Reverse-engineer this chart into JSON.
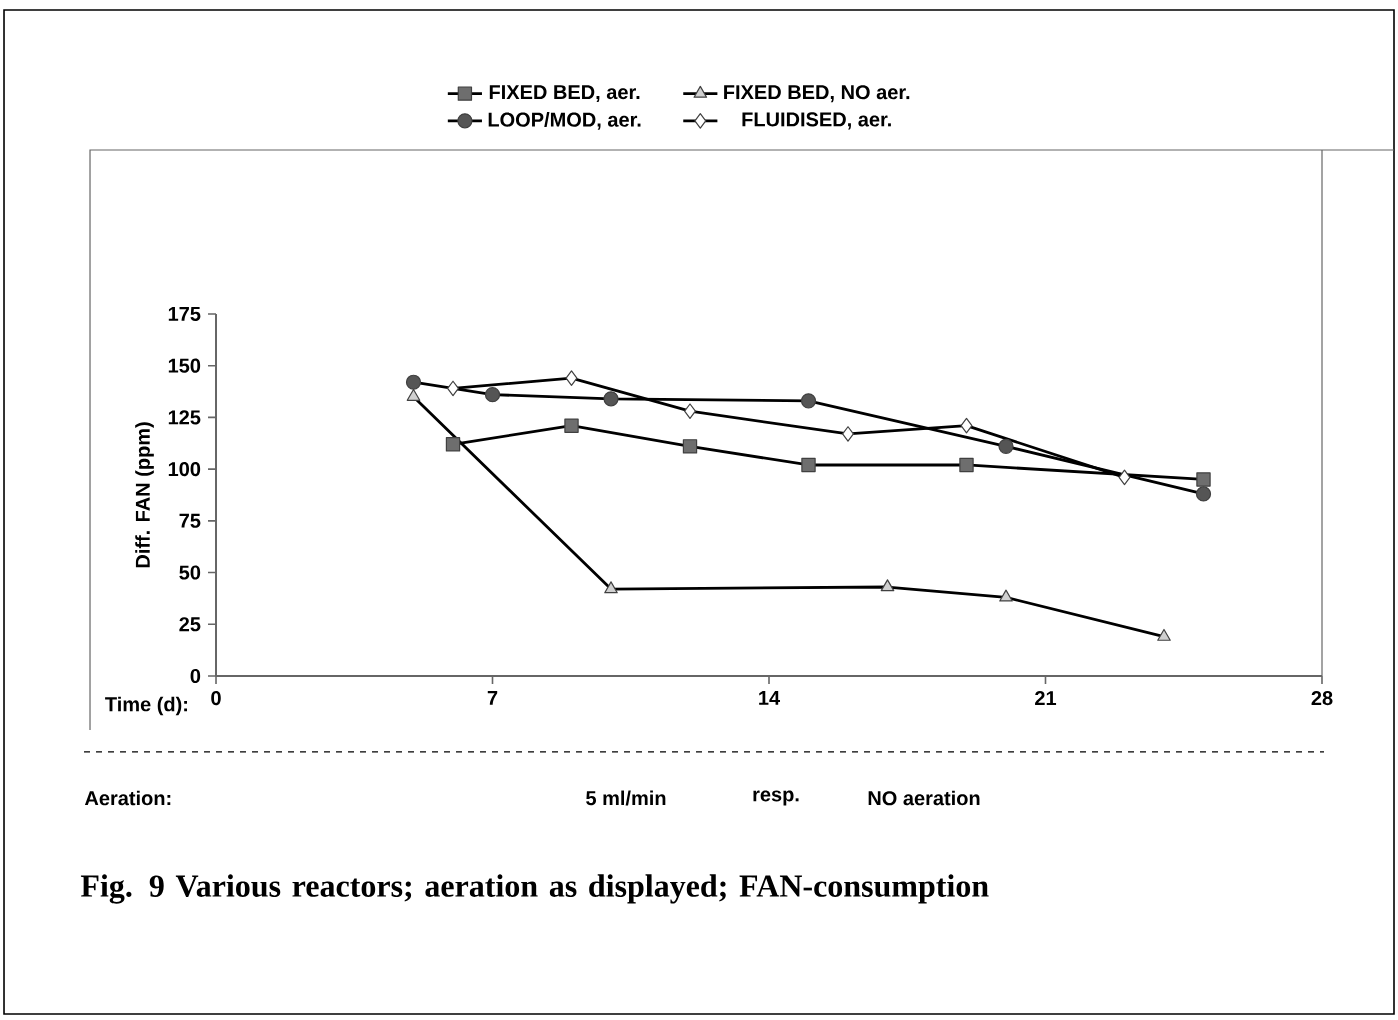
{
  "chart_data": {
    "type": "line",
    "xlabel": "Time (d):",
    "ylabel": "Diff. FAN (ppm)",
    "annotations": [
      "Aeration:",
      "5 ml/min",
      "resp.",
      "NO aeration",
      "Fig. 9  Various reactors; aeration as displayed; FAN-consumption"
    ],
    "xlim": [
      0,
      28
    ],
    "xticks": [
      0,
      7,
      14,
      21,
      28
    ],
    "ylim": [
      0,
      175
    ],
    "yticks": [
      0,
      25,
      50,
      75,
      100,
      125,
      150,
      175
    ],
    "grid": false,
    "legend": "top",
    "line_style": "solid",
    "series": [
      {
        "name": "FIXED BED, aer.",
        "color": "#6e6e6e",
        "marker": "square",
        "x": [
          6,
          9,
          12,
          15,
          19,
          25
        ],
        "values": [
          112,
          121,
          111,
          102,
          102,
          95
        ]
      },
      {
        "name": "FIXED BED, NO aer.",
        "color": "#d0d0d0",
        "marker": "triangle",
        "x": [
          5,
          10,
          17,
          20,
          24
        ],
        "values": [
          135,
          42,
          43,
          38,
          19
        ]
      },
      {
        "name": "LOOP/MOD, aer.",
        "color": "#555555",
        "marker": "circle",
        "x": [
          5,
          7,
          10,
          15,
          20,
          25
        ],
        "values": [
          142,
          136,
          134,
          133,
          111,
          88
        ]
      },
      {
        "name": "FLUIDISED, aer.",
        "color": "#ffffff",
        "marker": "diamond",
        "x": [
          6,
          9,
          12,
          16,
          19,
          23
        ],
        "values": [
          139,
          144,
          128,
          117,
          121,
          96
        ]
      }
    ]
  }
}
